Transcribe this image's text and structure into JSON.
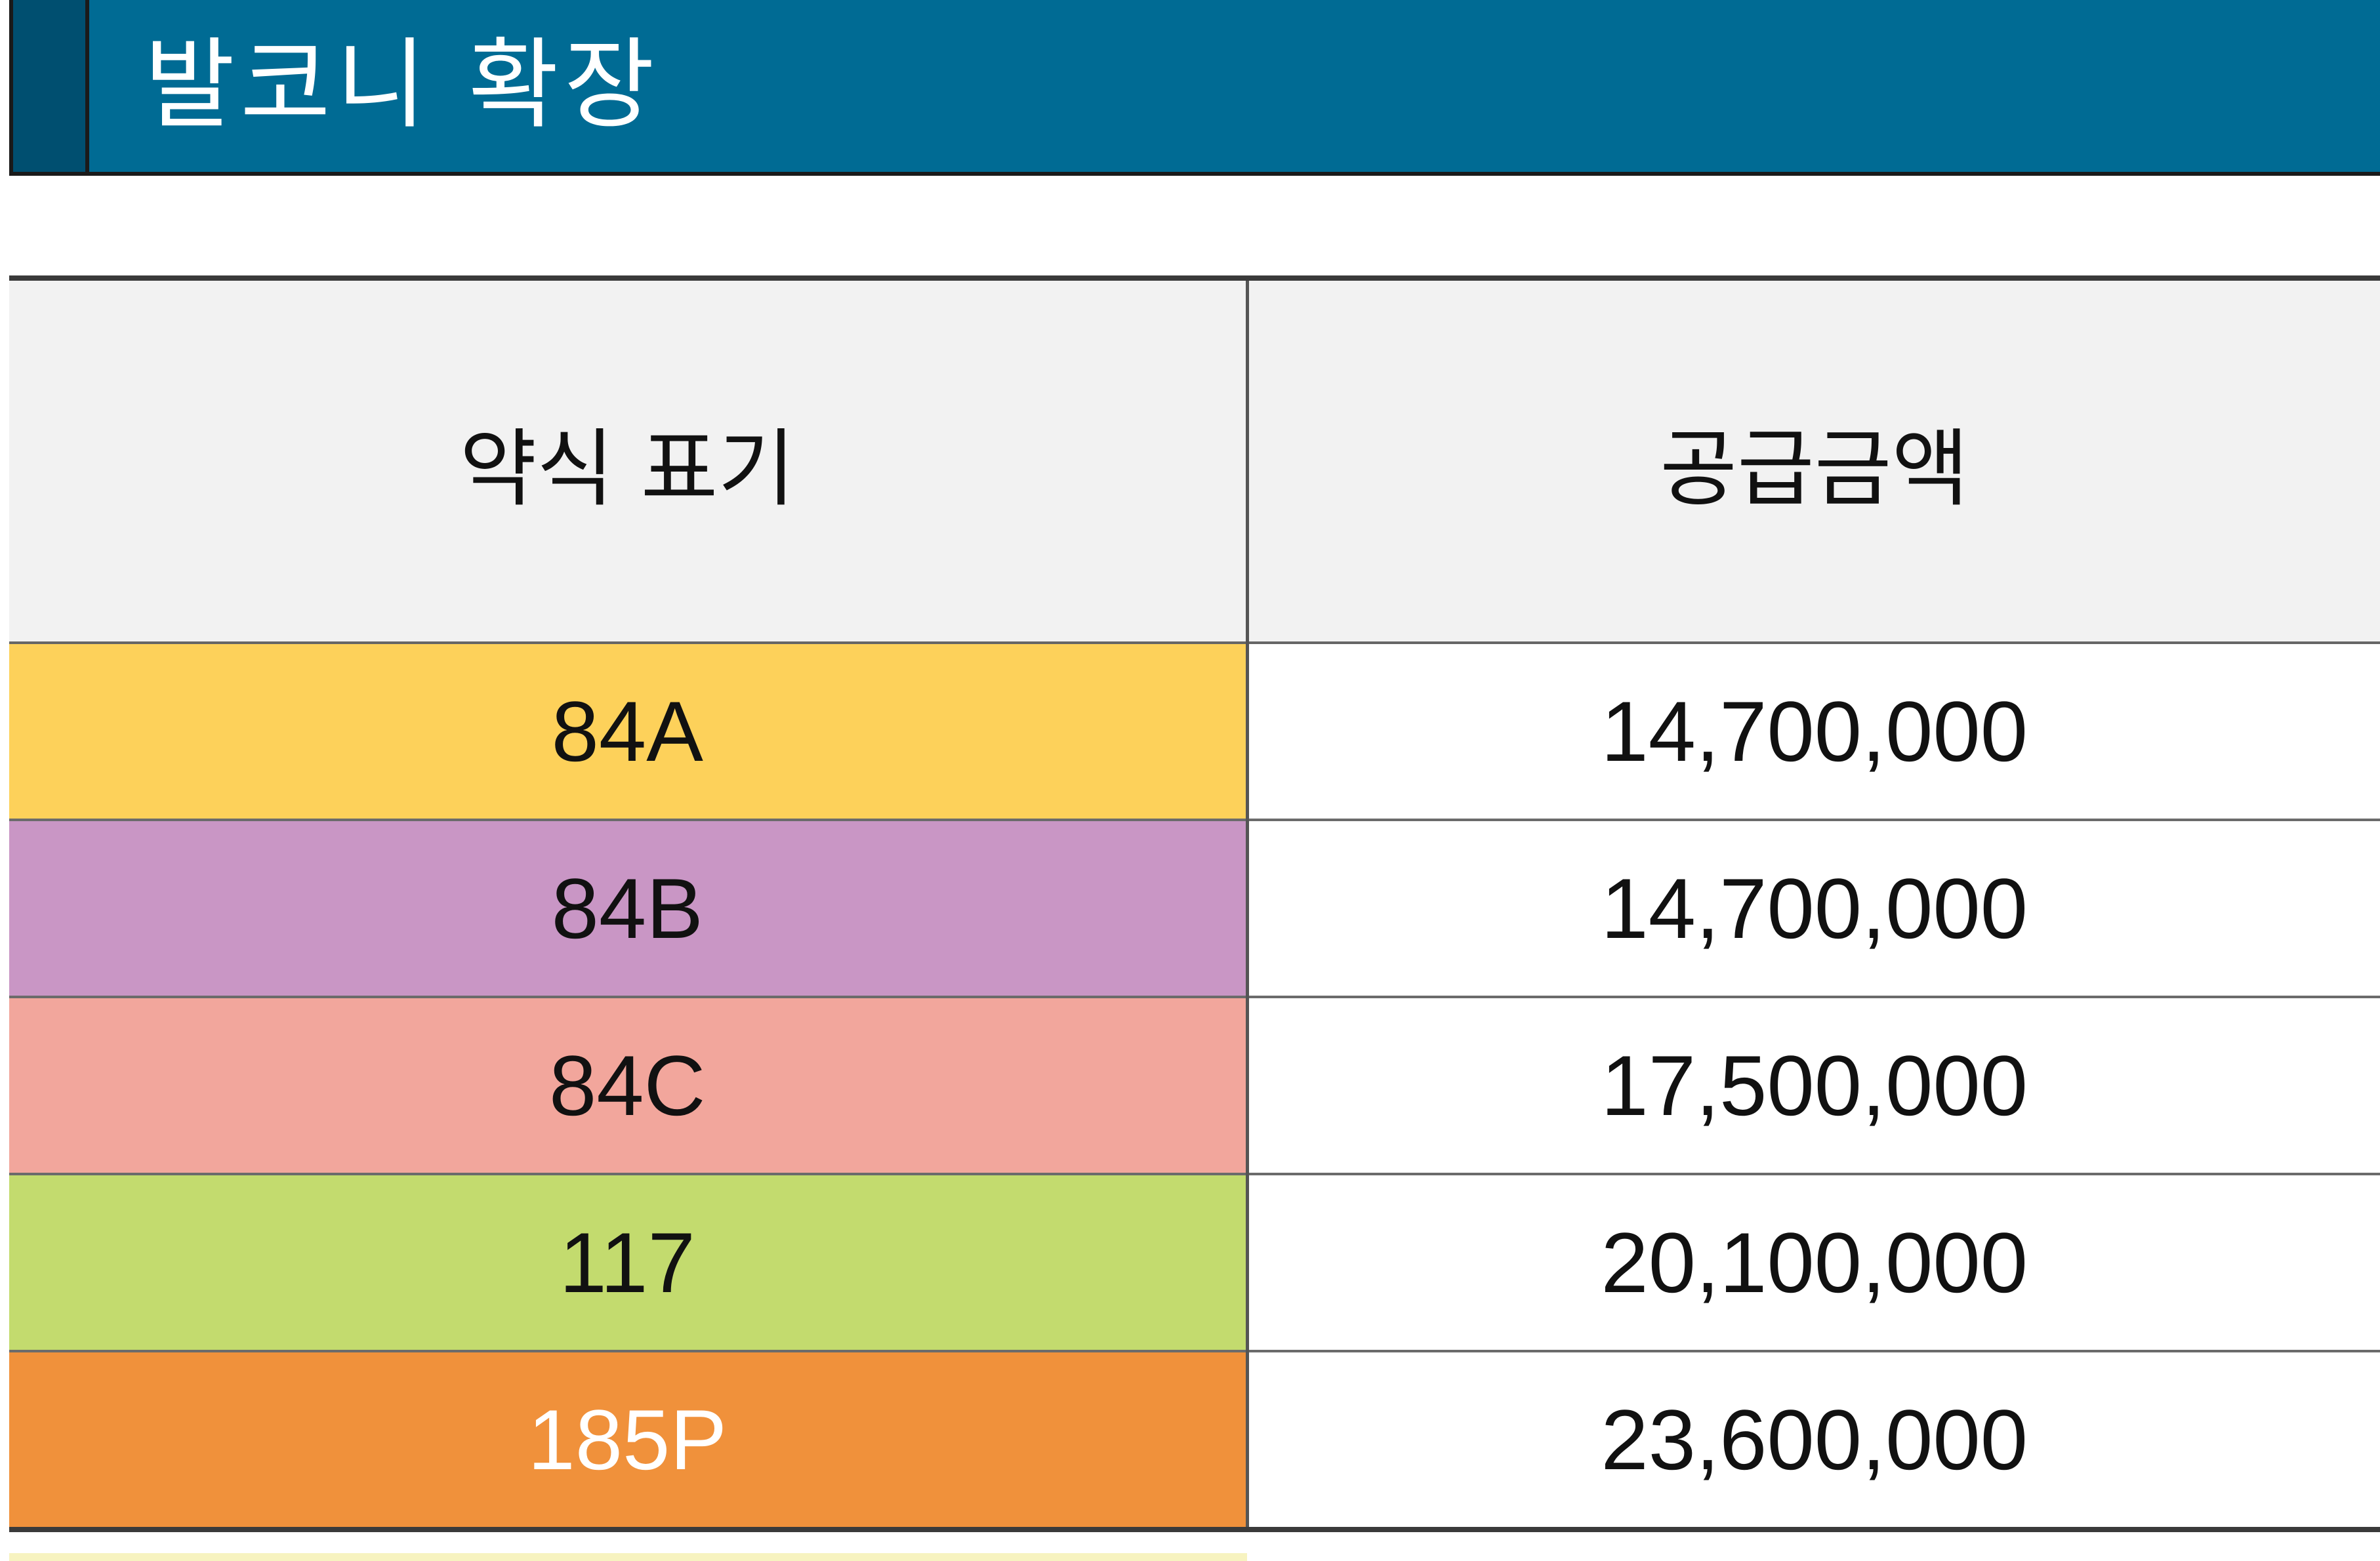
{
  "header": {
    "title": "발코니 확장"
  },
  "table": {
    "columns": [
      "약식 표기",
      "공급금액"
    ],
    "rows": [
      {
        "type": "84A",
        "amount": "14,700,000",
        "color": "#fdd15a",
        "text_color": "#111111"
      },
      {
        "type": "84B",
        "amount": "14,700,000",
        "color": "#c996c5",
        "text_color": "#111111"
      },
      {
        "type": "84C",
        "amount": "17,500,000",
        "color": "#f2a69c",
        "text_color": "#111111"
      },
      {
        "type": "117",
        "amount": "20,100,000",
        "color": "#c3db6e",
        "text_color": "#111111"
      },
      {
        "type": "185P",
        "amount": "23,600,000",
        "color": "#f0913b",
        "text_color": "#ffffff"
      }
    ]
  },
  "colors": {
    "header_bg": "#006b94",
    "header_accent": "#004f70",
    "table_header_bg": "#f2f2f2"
  }
}
